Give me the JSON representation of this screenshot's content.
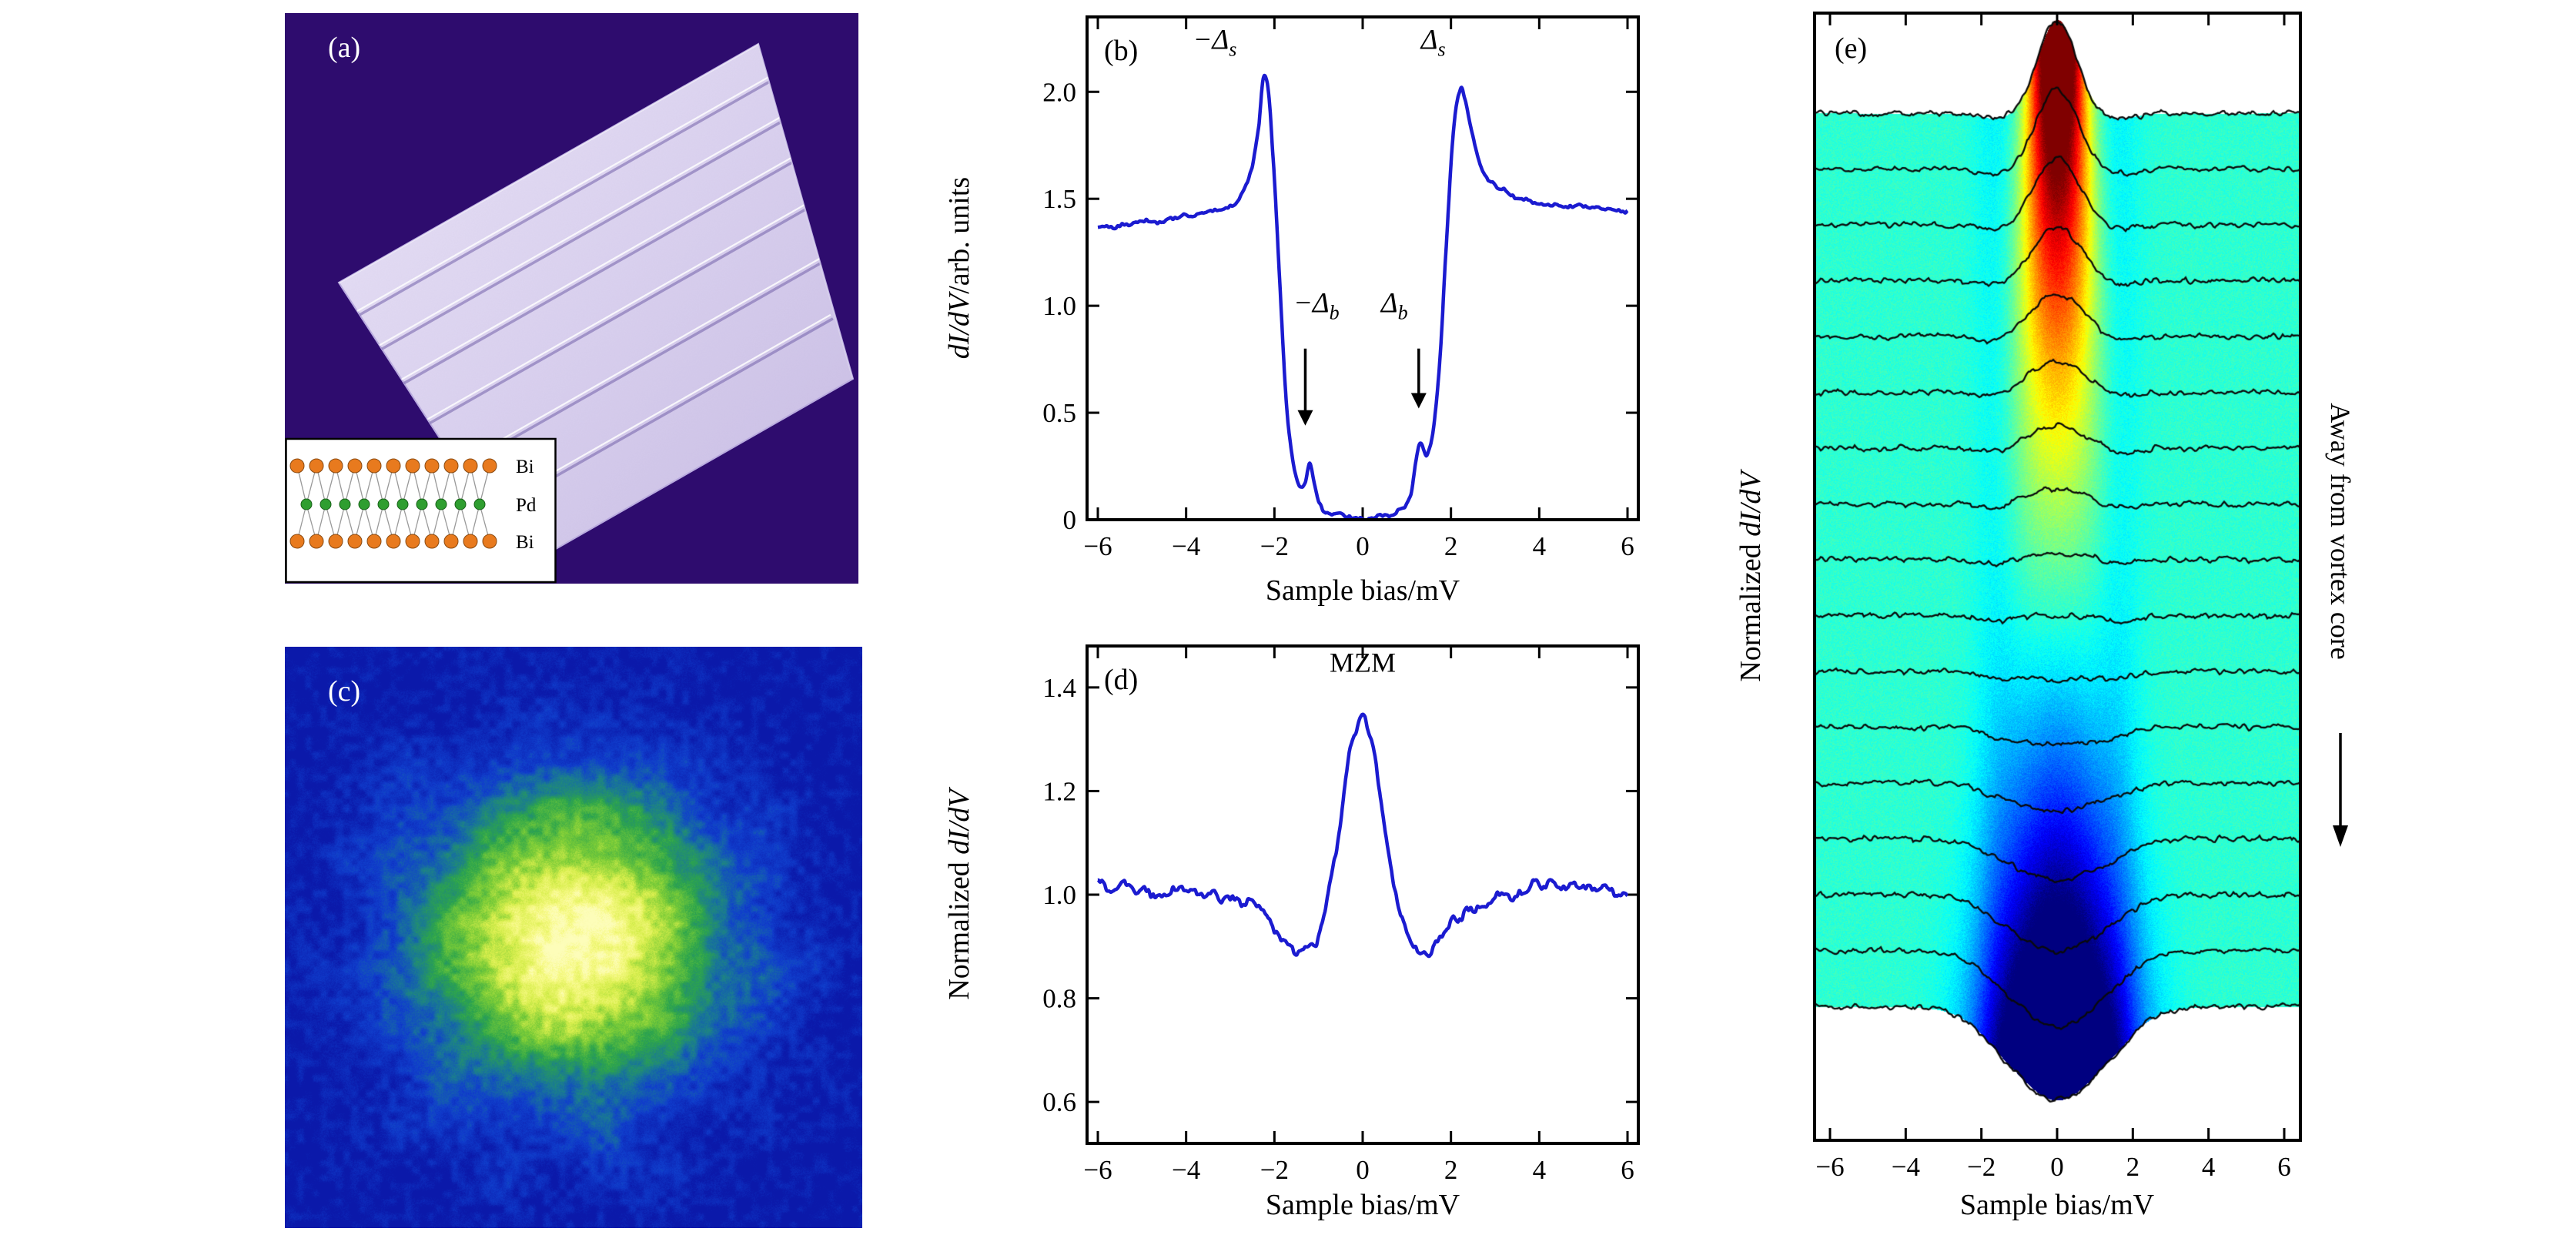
{
  "figure_labels": {
    "a": "(a)",
    "b": "(b)",
    "c": "(c)",
    "d": "(d)",
    "e": "(e)"
  },
  "panel_a": {
    "inset_labels": [
      "Bi",
      "Pd",
      "Bi"
    ]
  },
  "chart_data": [
    {
      "panel": "b",
      "type": "line",
      "color": "#1b1bd0",
      "xlabel": "Sample bias/mV",
      "ylabel_prefix": "",
      "ylabel_math": "dI/dV",
      "ylabel_suffix": "/arb. units",
      "xlim": [
        -6,
        6
      ],
      "ylim": [
        0,
        2.35
      ],
      "xtick_vals": [
        -6,
        -4,
        -2,
        0,
        2,
        4,
        6
      ],
      "xtick_labels": [
        "−6",
        "−4",
        "−2",
        "0",
        "2",
        "4",
        "6"
      ],
      "ytick_vals": [
        0,
        0.5,
        1.0,
        1.5,
        2.0
      ],
      "ytick_labels": [
        "0",
        "0.5",
        "1.0",
        "1.5",
        "2.0"
      ],
      "x": [
        -6,
        -5.5,
        -5,
        -4.5,
        -4,
        -3.5,
        -3,
        -2.7,
        -2.5,
        -2.35,
        -2.25,
        -2.15,
        -2.05,
        -1.9,
        -1.75,
        -1.6,
        -1.45,
        -1.3,
        -1.2,
        -1.1,
        -1.0,
        -0.85,
        -0.6,
        -0.3,
        0,
        0.3,
        0.6,
        0.85,
        1.0,
        1.1,
        1.2,
        1.3,
        1.45,
        1.6,
        1.75,
        1.9,
        2.05,
        2.2,
        2.3,
        2.45,
        2.6,
        2.8,
        3,
        3.5,
        4,
        4.5,
        5,
        5.5,
        6
      ],
      "y": [
        1.37,
        1.38,
        1.39,
        1.4,
        1.42,
        1.44,
        1.47,
        1.53,
        1.65,
        1.85,
        2.07,
        2.02,
        1.75,
        1.2,
        0.62,
        0.3,
        0.16,
        0.18,
        0.26,
        0.18,
        0.09,
        0.04,
        0.02,
        0.01,
        0.01,
        0.01,
        0.02,
        0.04,
        0.06,
        0.12,
        0.26,
        0.36,
        0.3,
        0.42,
        0.75,
        1.3,
        1.8,
        2.0,
        1.97,
        1.82,
        1.7,
        1.6,
        1.56,
        1.5,
        1.48,
        1.47,
        1.46,
        1.45,
        1.45
      ],
      "annotations": [
        {
          "sym": "−Δ",
          "sub": "s",
          "x": -3.35,
          "y": 2.2
        },
        {
          "sym": "Δ",
          "sub": "s",
          "x": 1.6,
          "y": 2.2
        },
        {
          "sym": "−Δ",
          "sub": "b",
          "x": -1.05,
          "y": 0.97,
          "arrow_x": -1.3,
          "arrow_y1": 0.8,
          "arrow_y2": 0.44
        },
        {
          "sym": "Δ",
          "sub": "b",
          "x": 0.72,
          "y": 0.97,
          "arrow_x": 1.27,
          "arrow_y1": 0.8,
          "arrow_y2": 0.52
        }
      ]
    },
    {
      "panel": "d",
      "type": "line",
      "color": "#1b1bd0",
      "xlabel": "Sample bias/mV",
      "ylabel_prefix": "Normalized ",
      "ylabel_math": "dI/dV",
      "ylabel_suffix": "",
      "xlim": [
        -6,
        6
      ],
      "ylim": [
        0.52,
        1.48
      ],
      "xtick_vals": [
        -6,
        -4,
        -2,
        0,
        2,
        4,
        6
      ],
      "xtick_labels": [
        "−6",
        "−4",
        "−2",
        "0",
        "2",
        "4",
        "6"
      ],
      "ytick_vals": [
        0.6,
        0.8,
        1.0,
        1.2,
        1.4
      ],
      "ytick_labels": [
        "0.6",
        "0.8",
        "1.0",
        "1.2",
        "1.4"
      ],
      "x": [
        -6,
        -5.5,
        -5,
        -4.5,
        -4,
        -3.5,
        -3,
        -2.5,
        -2.2,
        -1.9,
        -1.6,
        -1.4,
        -1.2,
        -1.0,
        -0.8,
        -0.6,
        -0.4,
        -0.25,
        -0.1,
        0,
        0.1,
        0.25,
        0.4,
        0.6,
        0.8,
        1.0,
        1.2,
        1.4,
        1.6,
        1.9,
        2.2,
        2.5,
        3,
        3.5,
        4,
        4.5,
        5,
        5.5,
        6
      ],
      "y": [
        1.02,
        1.015,
        1.01,
        1.005,
        1.0,
        0.995,
        0.99,
        0.975,
        0.96,
        0.93,
        0.895,
        0.885,
        0.89,
        0.925,
        0.99,
        1.08,
        1.2,
        1.29,
        1.33,
        1.335,
        1.33,
        1.29,
        1.2,
        1.08,
        0.99,
        0.925,
        0.89,
        0.885,
        0.895,
        0.93,
        0.96,
        0.975,
        0.99,
        1.0,
        1.025,
        1.015,
        1.01,
        1.005,
        1.0
      ],
      "annotations": [
        {
          "text": "MZM",
          "x": 0,
          "y": 1.43
        }
      ]
    },
    {
      "panel": "e",
      "type": "waterfall-colormap",
      "xlabel": "Sample bias/mV",
      "ylabel_prefix": "Normalized ",
      "ylabel_math": "dI/dV",
      "side_label": "Away from vortex core",
      "xlim": [
        -6,
        6
      ],
      "xtick_vals": [
        -6,
        -4,
        -2,
        0,
        2,
        4,
        6
      ],
      "xtick_labels": [
        "−6",
        "−4",
        "−2",
        "0",
        "2",
        "4",
        "6"
      ],
      "n_curves": 17,
      "amplitudes": [
        2.1,
        1.8,
        1.5,
        1.2,
        0.95,
        0.7,
        0.5,
        0.32,
        0.15,
        0,
        -0.18,
        -0.4,
        -0.65,
        -0.95,
        -1.3,
        -1.7,
        -2.1
      ],
      "sigma_start": 0.5,
      "sigma_end": 1.22,
      "side_dip_amp": 0.12,
      "side_dip_pos": 1.6,
      "colormap": [
        "#000080",
        "#0080ff",
        "#2effc9",
        "#80ff80",
        "#ffd100",
        "#ff0000",
        "#800000"
      ]
    },
    {
      "panel": "c",
      "type": "heatmap",
      "colormap": [
        "#0b19aa",
        "#1046c8",
        "#2da14a",
        "#c8e64b",
        "#fdfdb9"
      ]
    }
  ]
}
